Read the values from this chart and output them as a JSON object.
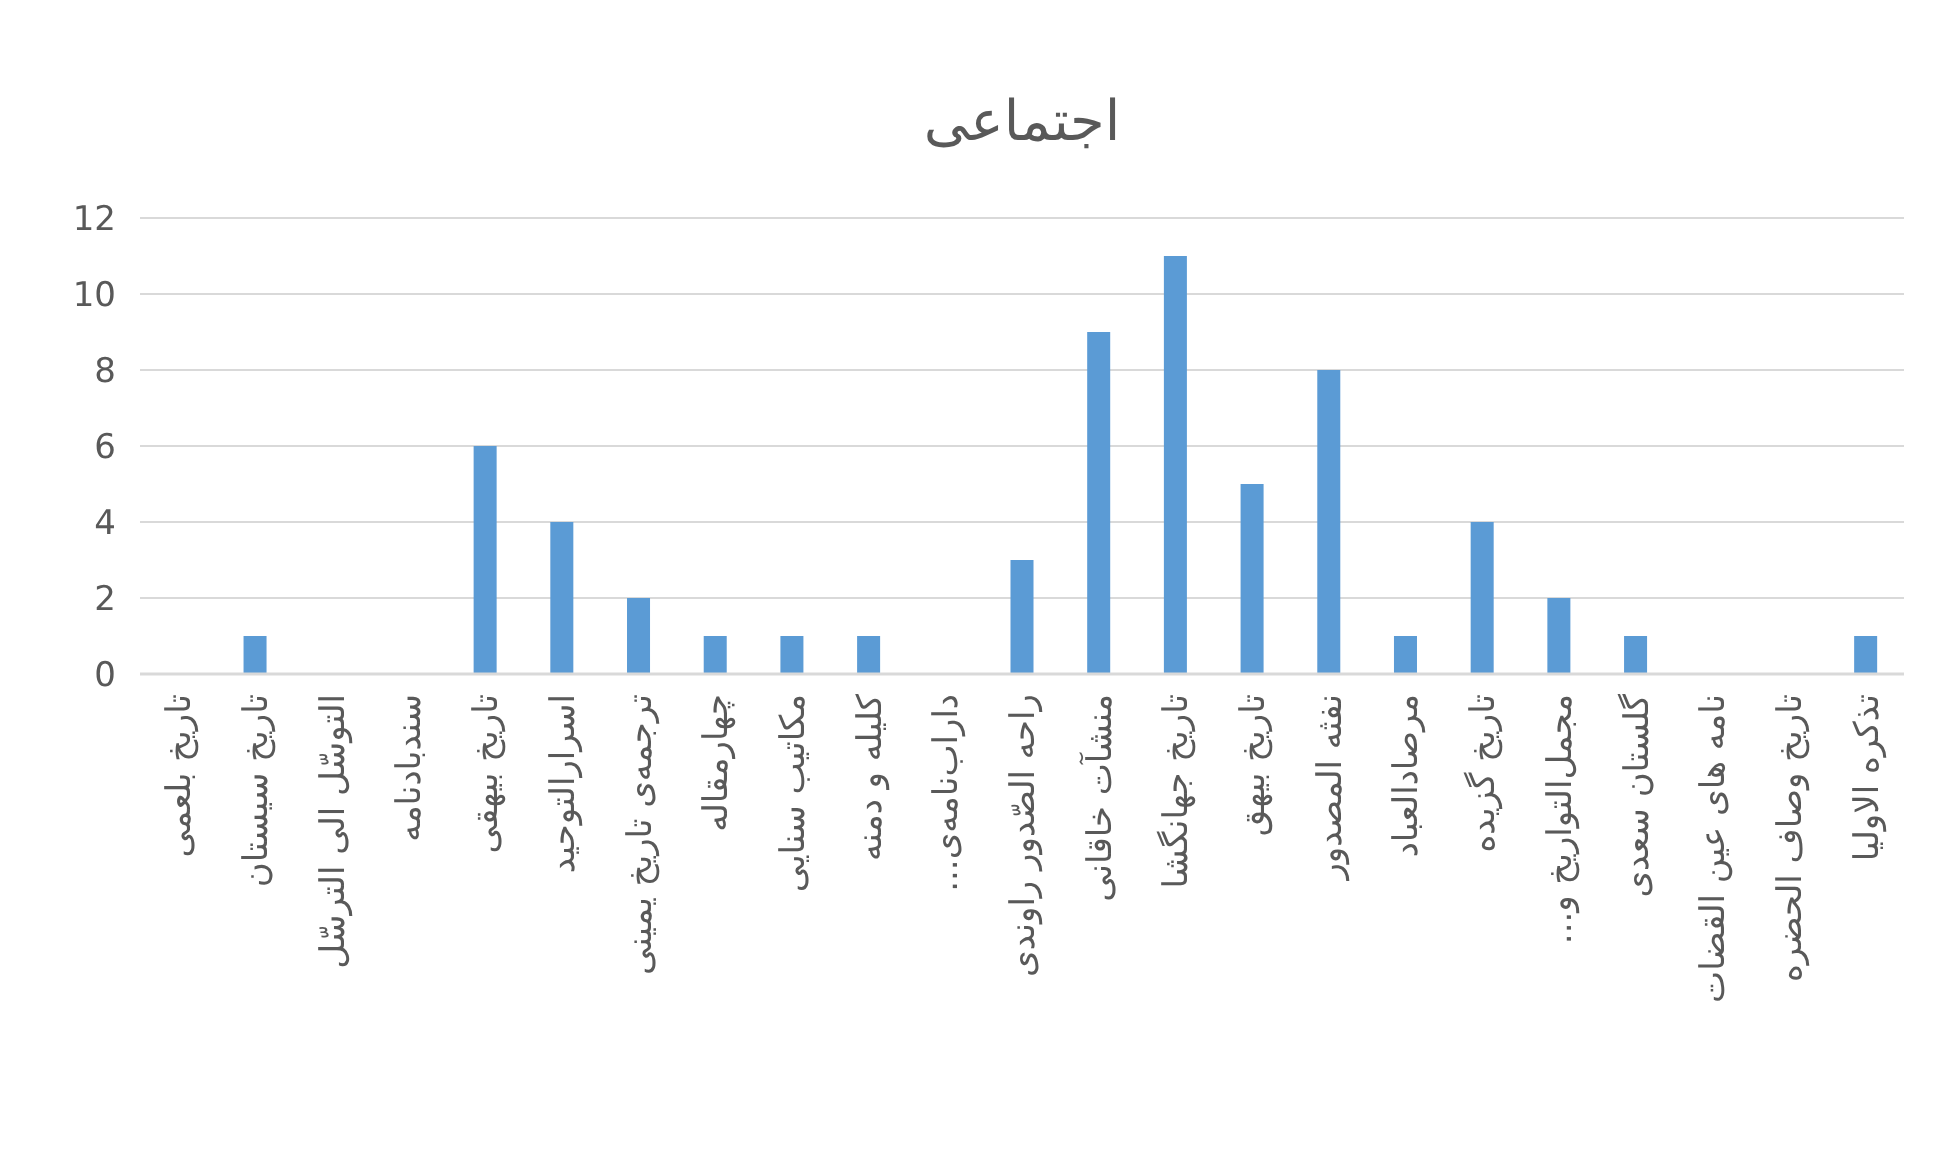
{
  "chart_data": {
    "type": "bar",
    "title": "اجتماعی",
    "categories": [
      "تاریخ بلعمی",
      "تاریخ سیستان",
      "التوسّل الی الترسّل",
      "سندبادنامه",
      "تاریخ بیهقی",
      "اسرارالتوحید",
      "ترجمه‌ی تاریخ یمینی",
      "چهارمقاله",
      "مکاتیب سنایی",
      "کلیله و دمنه",
      "داراب‌نامه‌ی...",
      "راحه الصّدور راوندی",
      "منشآت خاقانی",
      "تاریخ جهانگشا",
      "تاریخ بیهق",
      "نفثه المصدور",
      "مرصادالعباد",
      "تاریخ گزیده",
      "مجمل‌التواریخ و...",
      "گلستان سعدی",
      "نامه های عین القضات",
      "تاریخ وصاف الحضره",
      "تذکره الاولیا"
    ],
    "values": [
      0,
      1,
      0,
      0,
      6,
      4,
      2,
      1,
      1,
      1,
      0,
      3,
      9,
      11,
      5,
      8,
      1,
      4,
      2,
      1,
      0,
      0,
      1
    ],
    "color": "#5b9bd5",
    "ylim": [
      0,
      12
    ],
    "yticks": [
      0,
      2,
      4,
      6,
      8,
      10,
      12
    ],
    "grid": "y"
  }
}
